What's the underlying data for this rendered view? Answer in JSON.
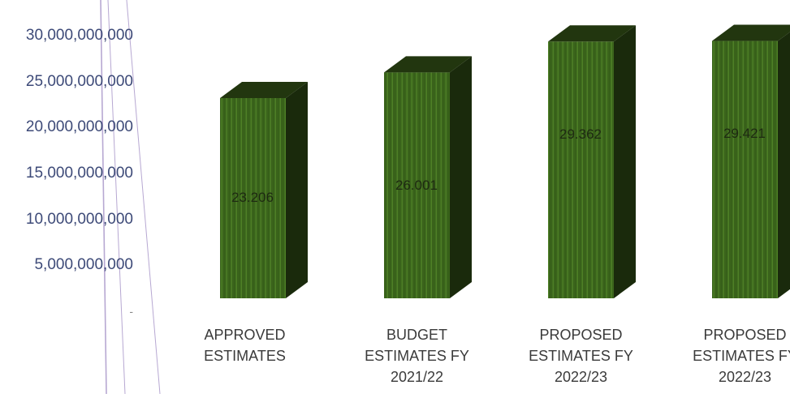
{
  "chart_data": {
    "type": "bar",
    "categories": [
      [
        "APPROVED",
        "ESTIMATES"
      ],
      [
        "BUDGET",
        "ESTIMATES FY",
        "2021/22"
      ],
      [
        "PROPOSED",
        "ESTIMATES FY",
        "2022/23"
      ],
      [
        "PROPOSED",
        "ESTIMATES FY",
        "2022/23"
      ]
    ],
    "values": [
      23206000000,
      26001000000,
      29362000000,
      29421000000
    ],
    "data_labels": [
      "23.206",
      "26.001",
      "29.362",
      "29.421"
    ],
    "y_tick_labels": [
      "-",
      "5,000,000,000",
      "10,000,000,000",
      "15,000,000,000",
      "20,000,000,000",
      "25,000,000,000",
      "30,000,000,000"
    ],
    "y_tick_values": [
      0,
      5000000000,
      10000000000,
      15000000000,
      20000000000,
      25000000000,
      30000000000
    ],
    "ylim": [
      0,
      30000000000
    ],
    "style": "3d-column",
    "bar_color": "#3f6b1e",
    "bar_side_color": "#1a2a0c",
    "bar_top_color": "#22360f",
    "axis_color": "#b7a8d2"
  }
}
